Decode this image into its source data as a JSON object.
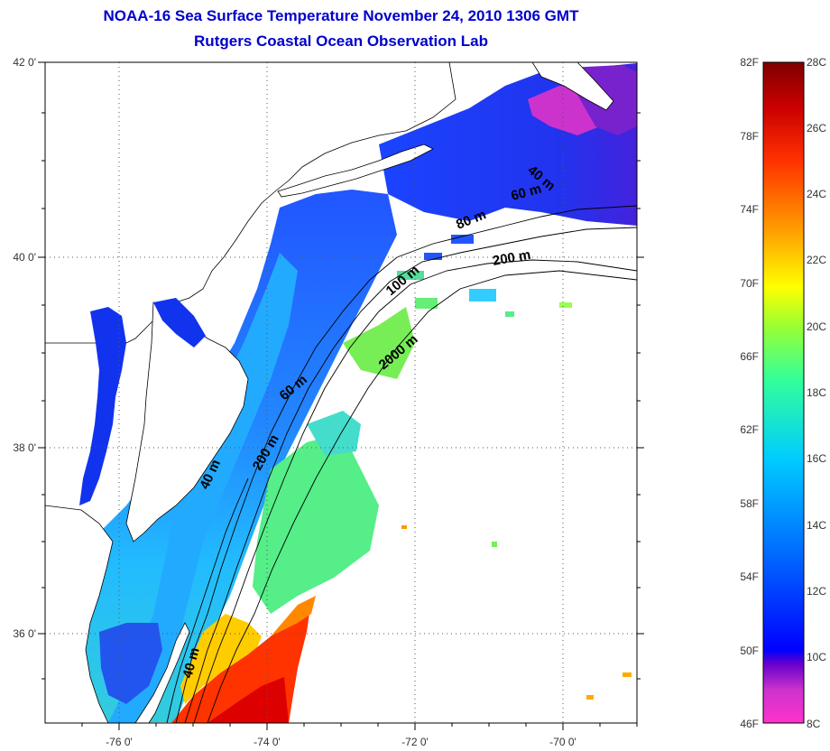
{
  "title_line1": "NOAA-16 Sea Surface Temperature November 24, 2010 1306 GMT",
  "title_line2": "Rutgers Coastal Ocean Observation Lab",
  "lat_ticks": [
    "42 0'",
    "40 0'",
    "38 0'",
    "36 0'"
  ],
  "lon_ticks": [
    "-76 0'",
    "-74 0'",
    "-72 0'",
    "-70 0'"
  ],
  "isobaths": [
    "40 m",
    "60 m",
    "80 m",
    "100 m",
    "200 m",
    "2000 m"
  ],
  "colorbar": {
    "fahrenheit_labels": [
      "82F",
      "78F",
      "74F",
      "70F",
      "66F",
      "62F",
      "58F",
      "54F",
      "50F",
      "46F"
    ],
    "celsius_labels": [
      "28C",
      "26C",
      "24C",
      "22C",
      "20C",
      "18C",
      "16C",
      "14C",
      "12C",
      "10C",
      "8C"
    ],
    "min_c": 8,
    "max_c": 28
  },
  "colors": {
    "title": "#0000cc",
    "land": "#ffffff",
    "cold": "#ff33cc",
    "cool": "#0000ff",
    "mild": "#00ccff",
    "warm": "#ffff00",
    "hot": "#ff0000"
  }
}
